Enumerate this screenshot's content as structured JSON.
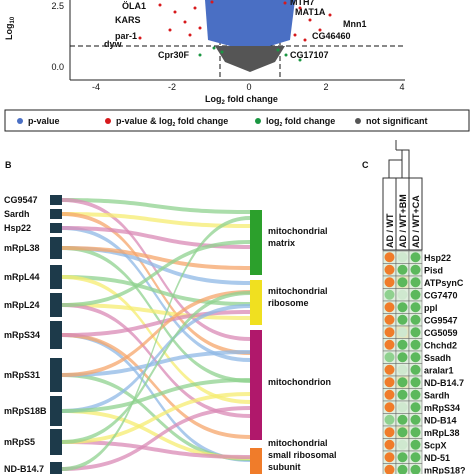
{
  "panel_a": {
    "y_axis_label": "Log",
    "y_axis_sub": "10",
    "x_axis_label": "Log",
    "x_axis_sub": "2",
    "x_axis_rest": " fold change",
    "x_ticks": [
      "-4",
      "-2",
      "0",
      "2",
      "4"
    ],
    "y_ticks": [
      "0.0",
      "2.5"
    ],
    "gene_labels": [
      "ÖLA1",
      "KARS",
      "par-1",
      "dyw",
      "Cpr30F",
      "MTH7",
      "MAT1A",
      "Mnn1",
      "CG46460",
      "CG17107"
    ]
  },
  "legend": {
    "items": [
      {
        "parts": [
          "p-value"
        ]
      },
      {
        "parts": [
          "p-value & log",
          "2",
          " fold change"
        ]
      },
      {
        "parts": [
          "log",
          "2",
          " fold change"
        ]
      },
      {
        "parts": [
          "not significant"
        ]
      }
    ]
  },
  "panel_b": {
    "label": "B",
    "genes": [
      "CG9547",
      "Sardh",
      "Hsp22",
      "mRpL38",
      "mRpL44",
      "mRpL24",
      "mRpS34",
      "mRpS31",
      "mRpS18B",
      "mRpS5",
      "ND-B14.7"
    ],
    "categories": [
      {
        "lines": [
          "mitochondrial",
          "matrix"
        ]
      },
      {
        "lines": [
          "mitochondrial",
          "ribosome"
        ]
      },
      {
        "lines": [
          "mitochondrion"
        ]
      },
      {
        "lines": [
          "mitochondrial",
          "small ribosomal",
          "subunit"
        ]
      }
    ]
  },
  "panel_c": {
    "label": "C",
    "columns": [
      "AD / WT",
      "AD / WT+BM",
      "AD / WT+CA"
    ],
    "genes": [
      "Hsp22",
      "Pisd",
      "ATPsynC",
      "CG7470",
      "ppl",
      "CG9547",
      "CG5059",
      "Chchd2",
      "Ssadh",
      "aralar1",
      "ND-B14.7",
      "Sardh",
      "mRpS34",
      "ND-B14",
      "mRpL38",
      "ScpX",
      "ND-51",
      "mRpS18?"
    ]
  }
}
